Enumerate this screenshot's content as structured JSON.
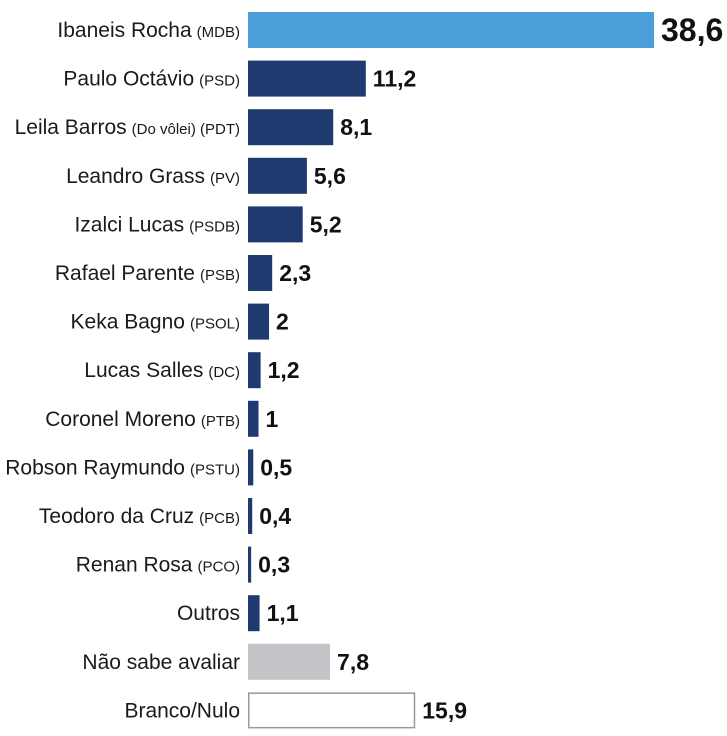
{
  "chart_data": {
    "type": "bar",
    "orientation": "horizontal",
    "title": "",
    "xlabel": "",
    "ylabel": "",
    "grid": false,
    "legend": "none",
    "categories": [
      {
        "name": "Ibaneis Rocha",
        "party": "(MDB)",
        "value": 38.6,
        "label": "38,6",
        "style": "highlight"
      },
      {
        "name": "Paulo Octávio",
        "party": "(PSD)",
        "value": 11.2,
        "label": "11,2",
        "style": "candidate"
      },
      {
        "name": "Leila Barros",
        "party": "(Do vôlei) (PDT)",
        "value": 8.1,
        "label": "8,1",
        "style": "candidate"
      },
      {
        "name": "Leandro Grass",
        "party": "(PV)",
        "value": 5.6,
        "label": "5,6",
        "style": "candidate"
      },
      {
        "name": "Izalci Lucas",
        "party": "(PSDB)",
        "value": 5.2,
        "label": "5,2",
        "style": "candidate"
      },
      {
        "name": "Rafael Parente",
        "party": "(PSB)",
        "value": 2.3,
        "label": "2,3",
        "style": "candidate"
      },
      {
        "name": "Keka Bagno",
        "party": "(PSOL)",
        "value": 2,
        "label": "2",
        "style": "candidate"
      },
      {
        "name": "Lucas Salles",
        "party": "(DC)",
        "value": 1.2,
        "label": "1,2",
        "style": "candidate"
      },
      {
        "name": "Coronel Moreno",
        "party": "(PTB)",
        "value": 1,
        "label": "1",
        "style": "candidate"
      },
      {
        "name": "Robson Raymundo",
        "party": "(PSTU)",
        "value": 0.5,
        "label": "0,5",
        "style": "candidate"
      },
      {
        "name": "Teodoro da Cruz",
        "party": "(PCB)",
        "value": 0.4,
        "label": "0,4",
        "style": "candidate"
      },
      {
        "name": "Renan Rosa",
        "party": "(PCO)",
        "value": 0.3,
        "label": "0,3",
        "style": "candidate"
      },
      {
        "name": "Outros",
        "party": "",
        "value": 1.1,
        "label": "1,1",
        "style": "candidate"
      },
      {
        "name": "Não sabe avaliar",
        "party": "",
        "value": 7.8,
        "label": "7,8",
        "style": "undecided"
      },
      {
        "name": "Branco/Nulo",
        "party": "",
        "value": 15.9,
        "label": "15,9",
        "style": "blank"
      }
    ],
    "xlim": [
      0,
      38.6
    ],
    "colors": {
      "highlight": "#4a9fd8",
      "candidate": "#1f3a6e",
      "undecided": "#c2c4c8",
      "blank": "#ffffff",
      "blank_border": "#9a9a9a"
    }
  }
}
